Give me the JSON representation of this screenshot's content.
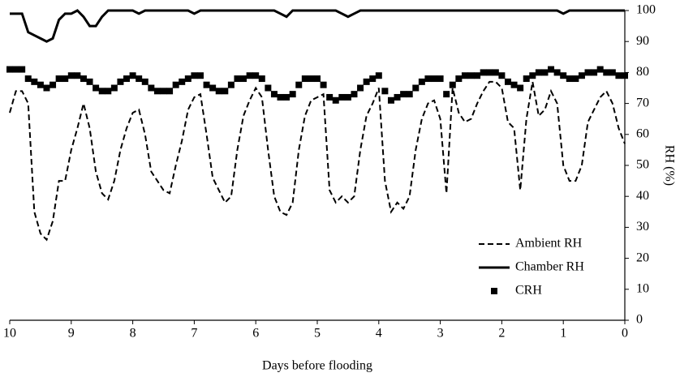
{
  "chart_data": {
    "type": "line",
    "x_label": "Days before flooding",
    "y_label": "RH (%)",
    "x": [
      10,
      9.9,
      9.8,
      9.7,
      9.6,
      9.5,
      9.4,
      9.3,
      9.2,
      9.1,
      9,
      8.9,
      8.8,
      8.7,
      8.6,
      8.5,
      8.4,
      8.3,
      8.2,
      8.1,
      8,
      7.9,
      7.8,
      7.7,
      7.6,
      7.5,
      7.4,
      7.3,
      7.2,
      7.1,
      7,
      6.9,
      6.8,
      6.7,
      6.6,
      6.5,
      6.4,
      6.3,
      6.2,
      6.1,
      6,
      5.9,
      5.8,
      5.7,
      5.6,
      5.5,
      5.4,
      5.3,
      5.2,
      5.1,
      5,
      4.9,
      4.8,
      4.7,
      4.6,
      4.5,
      4.4,
      4.3,
      4.2,
      4.1,
      4,
      3.9,
      3.8,
      3.7,
      3.6,
      3.5,
      3.4,
      3.3,
      3.2,
      3.1,
      3,
      2.9,
      2.8,
      2.7,
      2.6,
      2.5,
      2.4,
      2.3,
      2.2,
      2.1,
      2,
      1.9,
      1.8,
      1.7,
      1.6,
      1.5,
      1.4,
      1.3,
      1.2,
      1.1,
      1,
      0.9,
      0.8,
      0.7,
      0.6,
      0.5,
      0.4,
      0.3,
      0.2,
      0.1,
      0
    ],
    "series": [
      {
        "name": "Ambient RH",
        "color": "#000000",
        "line_style": "dashed",
        "values": [
          67,
          74,
          74,
          70,
          35,
          28,
          26,
          32,
          45,
          45,
          55,
          62,
          70,
          62,
          48,
          41,
          39,
          45,
          55,
          62,
          67,
          68,
          60,
          48,
          45,
          42,
          41,
          50,
          58,
          68,
          72,
          73,
          60,
          46,
          42,
          38,
          40,
          55,
          66,
          71,
          75,
          72,
          55,
          40,
          35,
          34,
          38,
          55,
          66,
          71,
          72,
          73,
          42,
          38,
          40,
          38,
          40,
          55,
          66,
          70,
          75,
          45,
          35,
          38,
          36,
          40,
          55,
          65,
          70,
          71,
          65,
          41,
          75,
          67,
          64,
          65,
          70,
          74,
          77,
          77,
          75,
          64,
          62,
          42,
          65,
          77,
          66,
          68,
          74,
          70,
          50,
          45,
          45,
          50,
          64,
          68,
          72,
          74,
          70,
          62,
          57
        ]
      },
      {
        "name": "Chamber RH",
        "color": "#000000",
        "line_style": "solid",
        "values": [
          99,
          99,
          99,
          93,
          92,
          91,
          90,
          91,
          97,
          99,
          99,
          100,
          98,
          95,
          95,
          98,
          100,
          100,
          100,
          100,
          100,
          99,
          100,
          100,
          100,
          100,
          100,
          100,
          100,
          100,
          99,
          100,
          100,
          100,
          100,
          100,
          100,
          100,
          100,
          100,
          100,
          100,
          100,
          100,
          99,
          98,
          100,
          100,
          100,
          100,
          100,
          100,
          100,
          100,
          99,
          98,
          99,
          100,
          100,
          100,
          100,
          100,
          100,
          100,
          100,
          100,
          100,
          100,
          100,
          100,
          100,
          100,
          100,
          100,
          100,
          100,
          100,
          100,
          100,
          100,
          100,
          100,
          100,
          100,
          100,
          100,
          100,
          100,
          100,
          100,
          99,
          100,
          100,
          100,
          100,
          100,
          100,
          100,
          100,
          100,
          100
        ]
      },
      {
        "name": "CRH",
        "color": "#000000",
        "line_style": "none",
        "marker": "square",
        "values": [
          81,
          81,
          81,
          78,
          77,
          76,
          75,
          76,
          78,
          78,
          79,
          79,
          78,
          77,
          75,
          74,
          74,
          75,
          77,
          78,
          79,
          78,
          77,
          75,
          74,
          74,
          74,
          76,
          77,
          78,
          79,
          79,
          76,
          75,
          74,
          74,
          76,
          78,
          78,
          79,
          79,
          78,
          75,
          73,
          72,
          72,
          73,
          76,
          78,
          78,
          78,
          76,
          72,
          71,
          72,
          72,
          73,
          75,
          77,
          78,
          79,
          74,
          71,
          72,
          73,
          73,
          75,
          77,
          78,
          78,
          78,
          73,
          76,
          78,
          79,
          79,
          79,
          80,
          80,
          80,
          79,
          77,
          76,
          75,
          78,
          79,
          80,
          80,
          81,
          80,
          79,
          78,
          78,
          79,
          80,
          80,
          81,
          80,
          80,
          79,
          79
        ]
      }
    ],
    "xlim": [
      10,
      0
    ],
    "xticks": [
      10,
      9,
      8,
      7,
      6,
      5,
      4,
      3,
      2,
      1,
      0
    ],
    "ylim": [
      0,
      100
    ],
    "yticks": [
      0,
      10,
      20,
      30,
      40,
      50,
      60,
      70,
      80,
      90,
      100
    ],
    "y_axis_side": "right",
    "legend": "lower right"
  }
}
